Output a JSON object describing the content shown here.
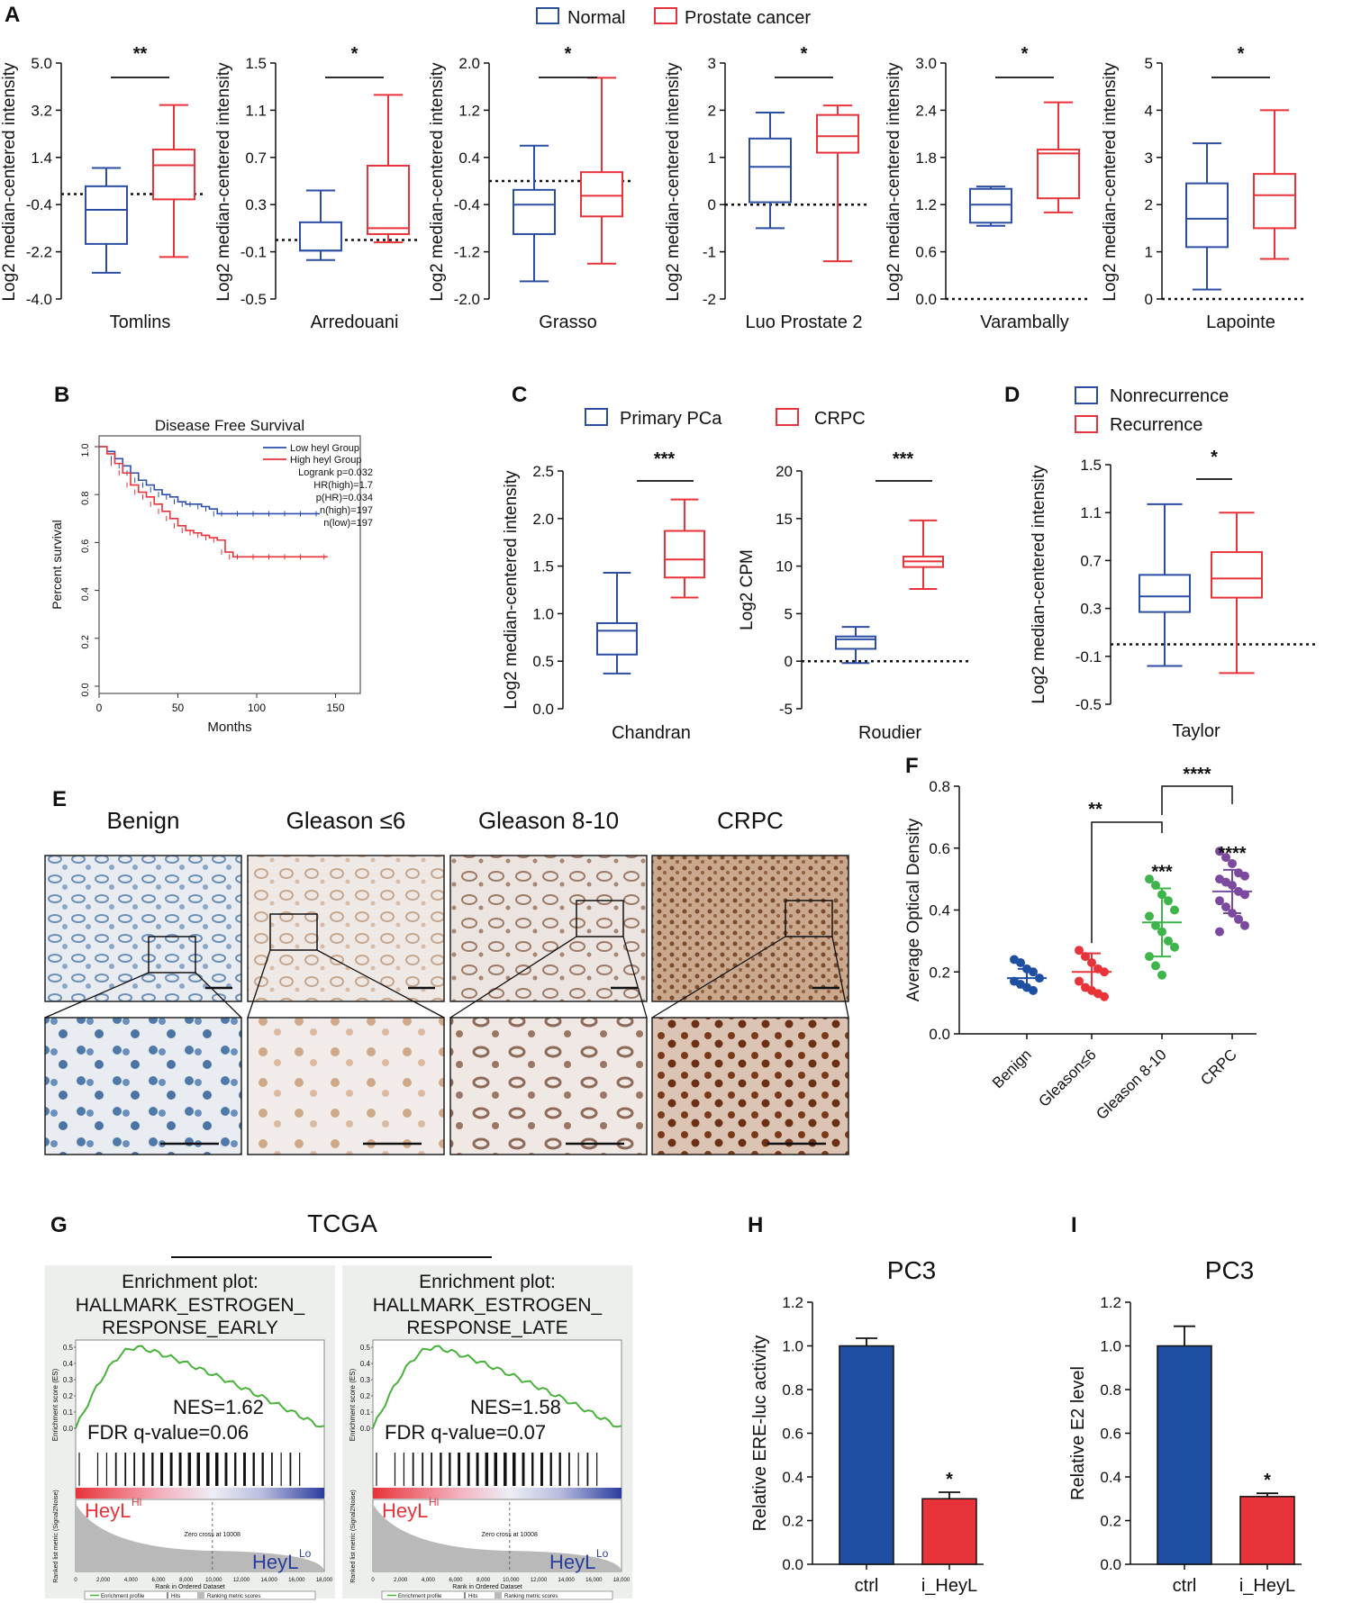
{
  "colors": {
    "normal": "#2b4ea2",
    "cancer": "#e8333a",
    "blue_bar": "#1f4fa3",
    "red_bar": "#e8333a",
    "green": "#3db54a",
    "purple": "#7b4a9e",
    "km_blue": "#2c4fae",
    "km_red": "#e8333a",
    "enrich_green": "#49b23b"
  },
  "panel_A": {
    "label": "A",
    "legend": [
      "Normal",
      "Prostate cancer"
    ],
    "ylabel": "Log2 median-centered intensity",
    "chart_data": [
      {
        "type": "box",
        "dataset": "Tomlins",
        "significance": "**",
        "ticks": [
          "5.0",
          "3.2",
          "1.4",
          "-0.4",
          "-2.2",
          "-4.0"
        ],
        "ylim": [
          -4.0,
          5.0
        ],
        "baseline": 0,
        "normal": {
          "min": -3.0,
          "q1": -1.9,
          "median": -0.6,
          "q3": 0.3,
          "max": 1.0
        },
        "cancer": {
          "min": -2.4,
          "q1": -0.2,
          "median": 1.1,
          "q3": 1.7,
          "max": 3.4
        }
      },
      {
        "type": "box",
        "dataset": "Arredouani",
        "significance": "*",
        "ticks": [
          "1.5",
          "1.1",
          "0.7",
          "0.3",
          "-0.1",
          "-0.5"
        ],
        "ylim": [
          -0.5,
          1.5
        ],
        "baseline": 0,
        "normal": {
          "min": -0.17,
          "q1": -0.09,
          "median": -0.09,
          "q3": 0.15,
          "max": 0.42
        },
        "cancer": {
          "min": -0.02,
          "q1": 0.05,
          "median": 0.1,
          "q3": 0.63,
          "max": 1.23
        }
      },
      {
        "type": "box",
        "dataset": "Grasso",
        "significance": "*",
        "ticks": [
          "2.0",
          "1.2",
          "0.4",
          "-0.4",
          "-1.2",
          "-2.0"
        ],
        "ylim": [
          -2.0,
          2.0
        ],
        "baseline": 0,
        "normal": {
          "min": -1.7,
          "q1": -0.9,
          "median": -0.4,
          "q3": -0.15,
          "max": 0.6
        },
        "cancer": {
          "min": -1.4,
          "q1": -0.6,
          "median": -0.25,
          "q3": 0.15,
          "max": 1.75
        }
      },
      {
        "type": "box",
        "dataset": "Luo Prostate 2",
        "significance": "*",
        "ticks": [
          "3",
          "2",
          "1",
          "0",
          "-1",
          "-2"
        ],
        "ylim": [
          -2,
          3
        ],
        "baseline": 0,
        "normal": {
          "min": -0.5,
          "q1": 0.05,
          "median": 0.8,
          "q3": 1.4,
          "max": 1.95
        },
        "cancer": {
          "min": -1.2,
          "q1": 1.1,
          "median": 1.45,
          "q3": 1.9,
          "max": 2.1
        }
      },
      {
        "type": "box",
        "dataset": "Varambally",
        "significance": "*",
        "ticks": [
          "3.0",
          "2.4",
          "1.8",
          "1.2",
          "0.6",
          "0.0"
        ],
        "ylim": [
          0.0,
          3.0
        ],
        "baseline": 0,
        "normal": {
          "min": 0.93,
          "q1": 0.97,
          "median": 1.2,
          "q3": 1.4,
          "max": 1.43
        },
        "cancer": {
          "min": 1.1,
          "q1": 1.28,
          "median": 1.85,
          "q3": 1.9,
          "max": 2.5
        }
      },
      {
        "type": "box",
        "dataset": "Lapointe",
        "significance": "*",
        "ticks": [
          "5",
          "4",
          "3",
          "2",
          "1",
          "0"
        ],
        "ylim": [
          0,
          5
        ],
        "baseline": 0,
        "normal": {
          "min": 0.2,
          "q1": 1.1,
          "median": 1.7,
          "q3": 2.45,
          "max": 3.3
        },
        "cancer": {
          "min": 0.85,
          "q1": 1.5,
          "median": 2.2,
          "q3": 2.65,
          "max": 4.0
        }
      }
    ]
  },
  "panel_B": {
    "label": "B",
    "chart_data": {
      "type": "line",
      "title": "Disease Free Survival",
      "xlabel": "Months",
      "ylabel": "Percent survival",
      "xticks": [
        "0",
        "50",
        "100",
        "150"
      ],
      "yticks": [
        "0.0",
        "0.2",
        "0.4",
        "0.6",
        "0.8",
        "1.0"
      ],
      "xlim": [
        0,
        160
      ],
      "ylim": [
        0,
        1.0
      ],
      "legend": [
        "Low heyl Group",
        "High heyl Group"
      ],
      "stats": [
        "Logrank p=0.032",
        "HR(high)=1.7",
        "p(HR)=0.034",
        "n(high)=197",
        "n(low)=197"
      ],
      "series": [
        {
          "name": "Low heyl Group",
          "x": [
            0,
            5,
            10,
            15,
            20,
            25,
            30,
            35,
            40,
            45,
            50,
            55,
            60,
            65,
            70,
            75,
            80,
            90,
            100,
            110,
            120,
            130,
            140
          ],
          "y": [
            1.0,
            0.98,
            0.95,
            0.92,
            0.89,
            0.86,
            0.84,
            0.82,
            0.8,
            0.79,
            0.77,
            0.76,
            0.76,
            0.75,
            0.74,
            0.72,
            0.72,
            0.72,
            0.72,
            0.72,
            0.72,
            0.72,
            0.72
          ]
        },
        {
          "name": "High heyl Group",
          "x": [
            0,
            5,
            10,
            15,
            20,
            25,
            30,
            35,
            40,
            45,
            50,
            55,
            60,
            65,
            70,
            75,
            80,
            85,
            90,
            100,
            110,
            120,
            130,
            145
          ],
          "y": [
            1.0,
            0.97,
            0.93,
            0.89,
            0.84,
            0.81,
            0.79,
            0.76,
            0.73,
            0.7,
            0.67,
            0.65,
            0.64,
            0.63,
            0.62,
            0.61,
            0.56,
            0.54,
            0.54,
            0.54,
            0.54,
            0.54,
            0.54,
            0.54
          ]
        }
      ]
    }
  },
  "panel_C": {
    "label": "C",
    "legend": [
      "Primary PCa",
      "CRPC"
    ],
    "chart_data": [
      {
        "type": "box",
        "dataset": "Chandran",
        "ylabel": "Log2 median-centered intensity",
        "significance": "***",
        "ticks": [
          "2.5",
          "2.0",
          "1.5",
          "1.0",
          "0.5",
          "0.0"
        ],
        "ylim": [
          0.0,
          2.5
        ],
        "baseline": null,
        "primary": {
          "min": 0.37,
          "q1": 0.57,
          "median": 0.82,
          "q3": 0.9,
          "max": 1.43
        },
        "crpc": {
          "min": 1.17,
          "q1": 1.38,
          "median": 1.57,
          "q3": 1.87,
          "max": 2.2
        }
      },
      {
        "type": "box",
        "dataset": "Roudier",
        "ylabel": "Log2 CPM",
        "significance": "***",
        "ticks": [
          "20",
          "15",
          "10",
          "5",
          "0",
          "-5"
        ],
        "ylim": [
          -5,
          20
        ],
        "baseline": 0,
        "primary": {
          "min": -0.2,
          "q1": 1.3,
          "median": 2.3,
          "q3": 2.6,
          "max": 3.6
        },
        "crpc": {
          "min": 7.6,
          "q1": 9.9,
          "median": 10.5,
          "q3": 11.0,
          "max": 14.8
        }
      }
    ]
  },
  "panel_D": {
    "label": "D",
    "legend": [
      "Nonrecurrence",
      "Recurrence"
    ],
    "chart_data": {
      "type": "box",
      "dataset": "Taylor",
      "ylabel": "Log2 median-centered intensity",
      "significance": "*",
      "ticks": [
        "1.5",
        "1.1",
        "0.7",
        "0.3",
        "-0.1",
        "-0.5"
      ],
      "ylim": [
        -0.5,
        1.5
      ],
      "baseline": 0,
      "nonrecurrence": {
        "min": -0.18,
        "q1": 0.27,
        "median": 0.4,
        "q3": 0.58,
        "max": 1.17
      },
      "recurrence": {
        "min": -0.24,
        "q1": 0.39,
        "median": 0.55,
        "q3": 0.77,
        "max": 1.1
      }
    }
  },
  "panel_E": {
    "label": "E",
    "columns": [
      "Benign",
      "Gleason ≤6",
      "Gleason 8-10",
      "CRPC"
    ]
  },
  "panel_F": {
    "label": "F",
    "chart_data": {
      "type": "scatter",
      "ylabel": "Average Optical Density",
      "categories": [
        "Benign",
        "Gleason≤6",
        "Gleason 8-10",
        "CRPC"
      ],
      "yticks": [
        "0.8",
        "0.6",
        "0.4",
        "0.2",
        "0.0"
      ],
      "ylim": [
        0.0,
        0.8
      ],
      "means": [
        0.18,
        0.2,
        0.36,
        0.46
      ],
      "sd": [
        0.03,
        0.06,
        0.11,
        0.07
      ],
      "points": [
        [
          0.24,
          0.23,
          0.21,
          0.2,
          0.18,
          0.17,
          0.16,
          0.15,
          0.14
        ],
        [
          0.27,
          0.25,
          0.23,
          0.21,
          0.2,
          0.17,
          0.15,
          0.14,
          0.13,
          0.12
        ],
        [
          0.5,
          0.48,
          0.45,
          0.43,
          0.4,
          0.38,
          0.35,
          0.33,
          0.3,
          0.28,
          0.25,
          0.22,
          0.19
        ],
        [
          0.59,
          0.57,
          0.55,
          0.52,
          0.51,
          0.5,
          0.49,
          0.48,
          0.46,
          0.45,
          0.43,
          0.41,
          0.39,
          0.37,
          0.35,
          0.33
        ]
      ],
      "significance": [
        "",
        "",
        "***",
        "****"
      ],
      "brackets": [
        {
          "from": "Gleason≤6",
          "to": "Gleason 8-10",
          "label": "**"
        },
        {
          "from": "Gleason 8-10",
          "to": "CRPC",
          "label": "****"
        }
      ]
    }
  },
  "panel_G": {
    "label": "G",
    "title": "TCGA",
    "plots": [
      {
        "header": "Enrichment plot:",
        "line1": "HALLMARK_ESTROGEN_",
        "line2": "RESPONSE_EARLY",
        "nes": "NES=1.62",
        "fdr": "FDR q-value=0.06"
      },
      {
        "header": "Enrichment plot:",
        "line1": "HALLMARK_ESTROGEN_",
        "line2": "RESPONSE_LATE",
        "nes": "NES=1.58",
        "fdr": "FDR q-value=0.07"
      }
    ],
    "hi_label": "HeyL",
    "hi_sup": "Hi",
    "lo_label": "HeyL",
    "lo_sup": "Lo",
    "es_label": "Enrichment score (ES)",
    "metric_label": "Ranked list metric (Signal2Noise)",
    "xlabel": "Rank in Ordered Dataset",
    "zero_cross": [
      "Zero cross at 10008",
      "Zero cross at 10008"
    ],
    "es_ticks": [
      "0.5",
      "0.4",
      "0.3",
      "0.2",
      "0.1",
      "0.0"
    ],
    "rank_ticks": [
      "0",
      "2,000",
      "4,000",
      "6,000",
      "8,000",
      "10,000",
      "12,000",
      "14,000",
      "16,000",
      "18,000"
    ],
    "legend": [
      "Enrichment profile",
      "Hits",
      "Ranking metric scores"
    ]
  },
  "panel_H": {
    "label": "H",
    "chart_data": {
      "type": "bar",
      "title": "PC3",
      "ylabel": "Relative ERE-luc activity",
      "categories": [
        "ctrl",
        "i_HeyL"
      ],
      "values": [
        1.0,
        0.3
      ],
      "errors": [
        0.035,
        0.03
      ],
      "significance": [
        "",
        "*"
      ],
      "ylim": [
        0,
        1.2
      ],
      "yticks": [
        "1.2",
        "1.0",
        "0.8",
        "0.6",
        "0.4",
        "0.2",
        "0.0"
      ]
    }
  },
  "panel_I": {
    "label": "I",
    "chart_data": {
      "type": "bar",
      "title": "PC3",
      "ylabel": "Relative E2 level",
      "categories": [
        "ctrl",
        "i_HeyL"
      ],
      "values": [
        1.0,
        0.31
      ],
      "errors": [
        0.09,
        0.015
      ],
      "significance": [
        "",
        "*"
      ],
      "ylim": [
        0,
        1.2
      ],
      "yticks": [
        "1.2",
        "1.0",
        "0.8",
        "0.6",
        "0.4",
        "0.2",
        "0.0"
      ]
    }
  }
}
